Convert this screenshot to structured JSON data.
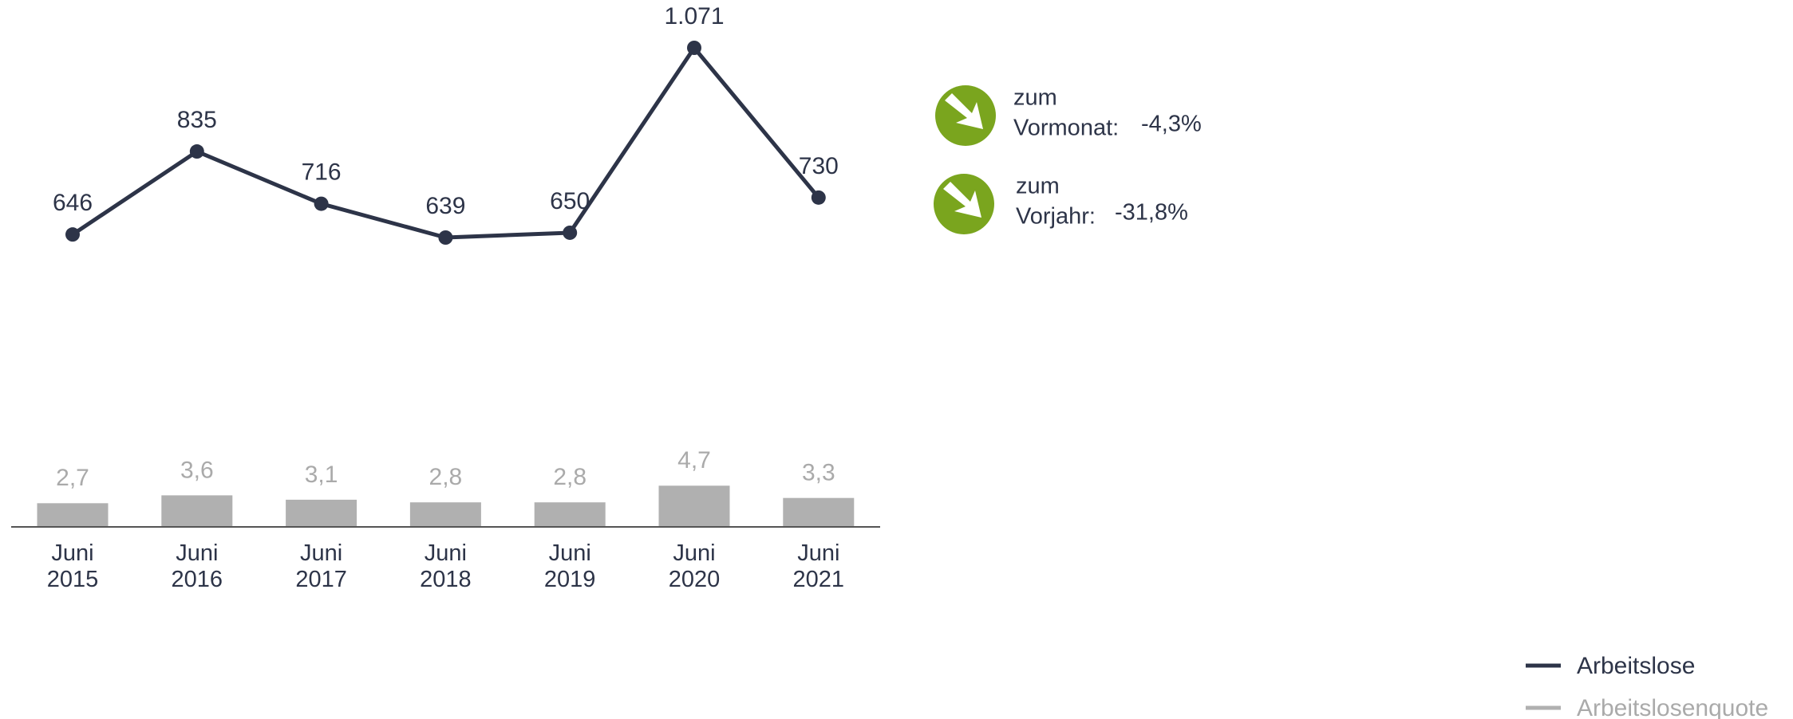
{
  "chart_data": {
    "type": "combo",
    "categories": [
      "Juni 2015",
      "Juni 2016",
      "Juni 2017",
      "Juni 2018",
      "Juni 2019",
      "Juni 2020",
      "Juni 2021"
    ],
    "series": [
      {
        "name": "Arbeitslose",
        "type": "line",
        "color": "#2d3448",
        "values": [
          646,
          835,
          716,
          639,
          650,
          1071,
          730
        ],
        "value_labels": [
          "646",
          "835",
          "716",
          "639",
          "650",
          "1.071",
          "730"
        ]
      },
      {
        "name": "Arbeitslosenquote",
        "type": "bar",
        "color": "#b0b0b0",
        "values": [
          2.7,
          3.6,
          3.1,
          2.8,
          2.8,
          4.7,
          3.3
        ],
        "value_labels": [
          "2,7",
          "3,6",
          "3,1",
          "2,8",
          "2,8",
          "4,7",
          "3,3"
        ]
      }
    ],
    "legend": "bottom-right"
  },
  "indicators": [
    {
      "line1": "zum",
      "line2": "Vormonat:",
      "value": "-4,3%",
      "color": "#7aa51e"
    },
    {
      "line1": "zum",
      "line2": "Vorjahr:",
      "value": "-31,8%",
      "color": "#7aa51e"
    }
  ]
}
